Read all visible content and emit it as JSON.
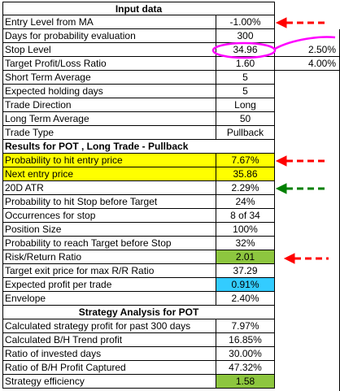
{
  "input_header": "Input data",
  "inputs": [
    {
      "label": "Entry Level from MA",
      "value": "-1.00%"
    },
    {
      "label": "Days for probability evaluation",
      "value": "300"
    },
    {
      "label": "Stop Level",
      "value": "34.96",
      "extra": "2.50%"
    },
    {
      "label": "Target Profit/Loss Ratio",
      "value": "1.60",
      "extra": "4.00%"
    },
    {
      "label": "Short Term Average",
      "value": "5"
    },
    {
      "label": "Expected holding days",
      "value": "5"
    },
    {
      "label": "Trade Direction",
      "value": "Long"
    },
    {
      "label": "Long Term Average",
      "value": "50"
    },
    {
      "label": "Trade Type",
      "value": "Pullback"
    }
  ],
  "results_header": "Results for POT , Long Trade - Pullback",
  "results": [
    {
      "label": "Probability to hit entry price",
      "value": "7.67%"
    },
    {
      "label": "Next entry price",
      "value": "35.86"
    },
    {
      "label": "20D ATR",
      "value": "2.29%"
    },
    {
      "label": "Probability to hit Stop before Target",
      "value": "24%"
    },
    {
      "label": "Occurrences for stop",
      "value": "8 of 34"
    },
    {
      "label": "Position Size",
      "value": "100%"
    },
    {
      "label": "Probability to reach Target before Stop",
      "value": "32%"
    },
    {
      "label": "Risk/Return Ratio",
      "value": "2.01"
    },
    {
      "label": "Target exit price for max R/R Ratio",
      "value": "37.29"
    },
    {
      "label": "Expected profit per trade",
      "value": "0.91%"
    },
    {
      "label": "Envelope",
      "value": "2.40%"
    }
  ],
  "strategy_header": "Strategy Analysis for POT",
  "strategy": [
    {
      "label": "Calculated strategy profit for past 300 days",
      "value": "7.97%"
    },
    {
      "label": "Calculated B/H Trend profit",
      "value": "16.85%"
    },
    {
      "label": "Ratio of invested days",
      "value": "30.00%"
    },
    {
      "label": "Ratio of B/H Profit Captured",
      "value": "47.32%"
    },
    {
      "label": "Strategy efficiency",
      "value": "1.58"
    }
  ],
  "colors": {
    "highlight_yellow": "#ffff00",
    "value_green": "#8dc63f",
    "value_blue": "#33ccff",
    "arrow_red": "#ff0000",
    "arrow_green": "#008000",
    "ellipse_magenta": "#ff00ff"
  }
}
